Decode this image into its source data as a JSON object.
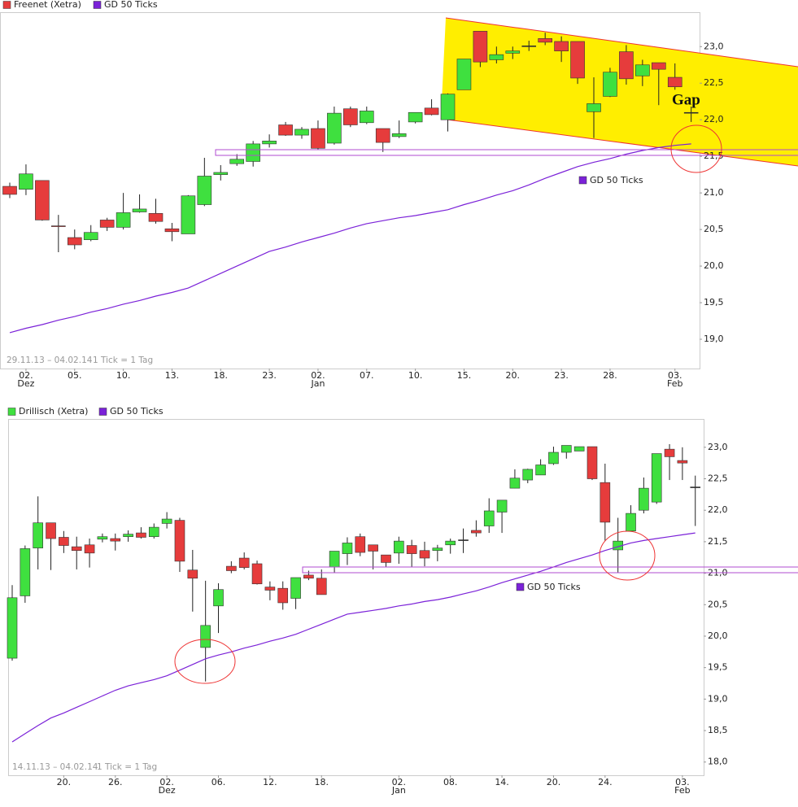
{
  "chart_data": [
    {
      "type": "candlestick",
      "up_color": "#3fe03f",
      "down_color": "#e63c3c",
      "categories": [
        null,
        "02.",
        null,
        null,
        "05.",
        null,
        null,
        "10.",
        null,
        null,
        "13.",
        null,
        null,
        "18.",
        null,
        null,
        "23.",
        null,
        null,
        "02.",
        null,
        null,
        "07.",
        null,
        null,
        "10.",
        null,
        null,
        "15.",
        null,
        null,
        "20.",
        null,
        null,
        "23.",
        null,
        null,
        "28.",
        null,
        null,
        null,
        "03.",
        null
      ],
      "category_months": [
        null,
        "Dez",
        null,
        null,
        null,
        null,
        null,
        null,
        null,
        null,
        null,
        null,
        null,
        null,
        null,
        null,
        null,
        null,
        null,
        "Jan",
        null,
        null,
        null,
        null,
        null,
        null,
        null,
        null,
        null,
        null,
        null,
        null,
        null,
        null,
        null,
        null,
        null,
        null,
        null,
        null,
        null,
        "Feb",
        null
      ],
      "ylim": [
        18.6,
        23.47
      ],
      "yticks": [
        {
          "value": 19,
          "label": "19,0"
        },
        {
          "value": 19.5,
          "label": "19,5"
        },
        {
          "value": 20,
          "label": "20,0"
        },
        {
          "value": 20.5,
          "label": "20,5"
        },
        {
          "value": 21,
          "label": "21,0"
        },
        {
          "value": 21.5,
          "label": "21,5"
        },
        {
          "value": 22,
          "label": "22,0"
        },
        {
          "value": 22.5,
          "label": "22,5"
        },
        {
          "value": 23,
          "label": "23,0"
        }
      ],
      "series": [
        {
          "name": "Freenet (Xetra)",
          "color": "#e63c3c",
          "open": [
            21.09,
            21.05,
            21.17,
            20.55,
            20.39,
            20.36,
            20.63,
            20.53,
            20.74,
            20.72,
            20.51,
            20.44,
            20.84,
            21.25,
            21.4,
            21.43,
            21.67,
            21.93,
            21.79,
            21.88,
            21.68,
            22.15,
            21.96,
            21.88,
            21.77,
            21.97,
            22.16,
            22.0,
            22.41,
            23.21,
            22.82,
            22.91,
            23.01,
            23.11,
            23.07,
            23.07,
            22.11,
            22.32,
            22.93,
            22.6,
            22.78,
            22.58,
            22.1
          ],
          "high": [
            21.14,
            21.39,
            21.17,
            20.7,
            20.5,
            20.56,
            20.66,
            21.0,
            20.98,
            20.92,
            20.59,
            20.97,
            21.48,
            21.38,
            21.53,
            21.71,
            21.8,
            21.97,
            21.9,
            21.99,
            22.18,
            22.18,
            22.18,
            21.88,
            21.99,
            22.1,
            22.28,
            22.36,
            22.83,
            23.21,
            23.0,
            23.0,
            23.08,
            23.19,
            23.14,
            23.07,
            22.58,
            22.71,
            23.02,
            22.82,
            22.78,
            22.77,
            22.18
          ],
          "low": [
            20.93,
            20.97,
            20.62,
            20.19,
            20.23,
            20.34,
            20.48,
            20.5,
            20.73,
            20.58,
            20.34,
            20.44,
            20.82,
            21.17,
            21.37,
            21.36,
            21.62,
            21.78,
            21.74,
            21.59,
            21.66,
            21.9,
            21.94,
            21.56,
            21.75,
            21.95,
            22.06,
            21.84,
            22.41,
            22.72,
            22.77,
            22.83,
            22.94,
            23.02,
            22.79,
            22.49,
            21.75,
            22.31,
            22.48,
            22.46,
            22.2,
            22.41,
            21.97
          ],
          "close": [
            20.98,
            21.26,
            20.63,
            20.54,
            20.29,
            20.46,
            20.53,
            20.73,
            20.78,
            20.61,
            20.47,
            20.96,
            21.23,
            21.28,
            21.46,
            21.67,
            21.71,
            21.79,
            21.87,
            21.61,
            22.09,
            21.93,
            22.12,
            21.69,
            21.81,
            22.1,
            22.07,
            22.35,
            22.83,
            22.79,
            22.89,
            22.94,
            23.01,
            23.06,
            22.94,
            22.57,
            22.22,
            22.65,
            22.56,
            22.75,
            22.69,
            22.45,
            22.1
          ]
        },
        {
          "name": "GD 50 Ticks",
          "color": "#7b22d8",
          "values": [
            19.09,
            19.15,
            19.2,
            19.26,
            19.31,
            19.37,
            19.42,
            19.48,
            19.53,
            19.59,
            19.64,
            19.7,
            19.8,
            19.9,
            20.0,
            20.1,
            20.2,
            20.26,
            20.33,
            20.39,
            20.45,
            20.52,
            20.58,
            20.62,
            20.66,
            20.69,
            20.73,
            20.77,
            20.84,
            20.9,
            20.97,
            21.03,
            21.11,
            21.2,
            21.28,
            21.36,
            21.42,
            21.47,
            21.53,
            21.58,
            21.62,
            21.65,
            21.67
          ]
        }
      ],
      "annotations": {
        "gap": "Gap",
        "line_label": "GD 50 Ticks"
      },
      "period": "29.11.13 – 04.02.14",
      "tick_note": "1 Tick = 1 Tag"
    },
    {
      "type": "candlestick",
      "up_color": "#3fe03f",
      "down_color": "#e63c3c",
      "categories": [
        null,
        null,
        null,
        null,
        "20.",
        null,
        null,
        null,
        "26.",
        null,
        null,
        null,
        "02.",
        null,
        null,
        null,
        "06.",
        null,
        null,
        null,
        "12.",
        null,
        null,
        null,
        "18.",
        null,
        null,
        null,
        null,
        null,
        "02.",
        null,
        null,
        null,
        "08.",
        null,
        null,
        null,
        "14.",
        null,
        null,
        null,
        "20.",
        null,
        null,
        null,
        "24.",
        null,
        null,
        null,
        null,
        null,
        "03.",
        null
      ],
      "category_months": [
        null,
        null,
        null,
        null,
        null,
        null,
        null,
        null,
        null,
        null,
        null,
        null,
        "Dez",
        null,
        null,
        null,
        null,
        null,
        null,
        null,
        null,
        null,
        null,
        null,
        null,
        null,
        null,
        null,
        null,
        null,
        "Jan",
        null,
        null,
        null,
        null,
        null,
        null,
        null,
        null,
        null,
        null,
        null,
        null,
        null,
        null,
        null,
        null,
        null,
        null,
        null,
        null,
        null,
        "Feb",
        null
      ],
      "ylim": [
        17.79,
        23.45
      ],
      "yticks": [
        {
          "value": 18,
          "label": "18,0"
        },
        {
          "value": 18.5,
          "label": "18,5"
        },
        {
          "value": 19,
          "label": "19,0"
        },
        {
          "value": 19.5,
          "label": "19,5"
        },
        {
          "value": 20,
          "label": "20,0"
        },
        {
          "value": 20.5,
          "label": "20,5"
        },
        {
          "value": 21,
          "label": "21,0"
        },
        {
          "value": 21.5,
          "label": "21,5"
        },
        {
          "value": 22,
          "label": "22,0"
        },
        {
          "value": 22.5,
          "label": "22,5"
        },
        {
          "value": 23,
          "label": "23,0"
        }
      ],
      "series": [
        {
          "name": "Drillisch (Xetra)",
          "color": "#3fe03f",
          "open": [
            19.65,
            20.64,
            21.4,
            21.8,
            21.57,
            21.42,
            21.45,
            21.54,
            21.55,
            21.58,
            21.64,
            21.58,
            21.79,
            21.84,
            21.05,
            19.82,
            20.48,
            21.11,
            21.24,
            21.15,
            20.78,
            20.76,
            20.6,
            20.97,
            20.92,
            21.1,
            21.31,
            21.58,
            21.45,
            21.29,
            21.32,
            21.44,
            21.36,
            21.36,
            21.45,
            21.53,
            21.68,
            21.75,
            21.97,
            22.35,
            22.48,
            22.56,
            22.74,
            22.92,
            22.94,
            23.01,
            22.44,
            21.37,
            21.67,
            22.0,
            22.13,
            22.97,
            22.79,
            22.37
          ],
          "high": [
            20.81,
            21.44,
            22.22,
            21.8,
            21.67,
            21.58,
            21.55,
            21.63,
            21.63,
            21.68,
            21.73,
            21.79,
            21.97,
            21.88,
            21.37,
            20.88,
            20.84,
            21.19,
            21.33,
            21.2,
            20.87,
            20.87,
            20.93,
            21.04,
            21.06,
            21.35,
            21.57,
            21.63,
            21.45,
            21.29,
            21.58,
            21.53,
            21.5,
            21.45,
            21.55,
            21.71,
            21.84,
            22.19,
            22.16,
            22.65,
            22.66,
            22.81,
            23.01,
            23.03,
            23.01,
            23.01,
            22.74,
            21.88,
            22.08,
            22.52,
            22.9,
            23.05,
            23.0,
            22.55
          ],
          "low": [
            19.61,
            20.53,
            21.06,
            21.05,
            21.32,
            21.06,
            21.09,
            21.49,
            21.36,
            21.5,
            21.55,
            21.55,
            21.71,
            21.02,
            20.39,
            19.28,
            20.05,
            21.0,
            21.06,
            20.82,
            20.57,
            20.42,
            20.43,
            20.89,
            20.66,
            21.01,
            21.13,
            21.27,
            21.06,
            21.1,
            21.15,
            21.1,
            21.11,
            21.19,
            21.31,
            21.32,
            21.58,
            21.64,
            21.64,
            22.35,
            22.43,
            22.56,
            22.72,
            22.82,
            22.94,
            22.48,
            21.51,
            21.01,
            21.66,
            21.95,
            22.1,
            22.48,
            22.48,
            21.75
          ],
          "close": [
            20.61,
            21.39,
            21.8,
            21.55,
            21.44,
            21.36,
            21.32,
            21.58,
            21.51,
            21.62,
            21.57,
            21.73,
            21.86,
            21.19,
            20.92,
            20.17,
            20.74,
            21.04,
            21.09,
            20.83,
            20.73,
            20.53,
            20.93,
            20.92,
            20.66,
            21.35,
            21.48,
            21.33,
            21.35,
            21.17,
            21.51,
            21.31,
            21.24,
            21.4,
            21.51,
            21.53,
            21.64,
            21.99,
            22.16,
            22.51,
            22.65,
            22.72,
            22.92,
            23.03,
            23.01,
            22.5,
            21.81,
            21.51,
            21.95,
            22.35,
            22.9,
            22.85,
            22.75,
            22.37
          ]
        },
        {
          "name": "GD 50 Ticks",
          "color": "#7b22d8",
          "values": [
            18.32,
            18.45,
            18.58,
            18.7,
            18.78,
            18.87,
            18.96,
            19.05,
            19.14,
            19.21,
            19.26,
            19.31,
            19.37,
            19.46,
            19.55,
            19.64,
            19.7,
            19.75,
            19.81,
            19.86,
            19.92,
            19.97,
            20.03,
            20.11,
            20.19,
            20.27,
            20.35,
            20.38,
            20.41,
            20.44,
            20.48,
            20.51,
            20.55,
            20.58,
            20.62,
            20.67,
            20.72,
            20.78,
            20.85,
            20.91,
            20.97,
            21.03,
            21.1,
            21.17,
            21.23,
            21.29,
            21.36,
            21.42,
            21.48,
            21.52,
            21.55,
            21.58,
            21.61,
            21.64
          ]
        }
      ],
      "annotations": {
        "line_label": "GD 50 Ticks"
      },
      "period": "14.11.13 – 04.02.14",
      "tick_note": "1 Tick = 1 Tag"
    }
  ]
}
